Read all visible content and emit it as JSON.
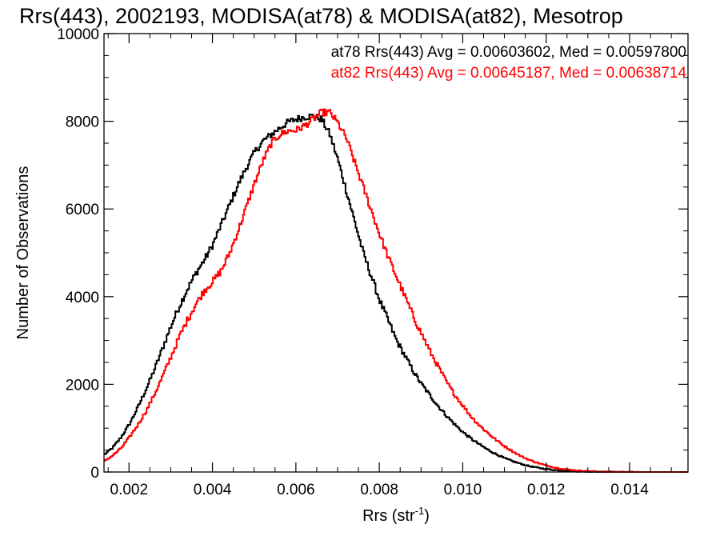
{
  "chart_data": {
    "type": "line",
    "title": "Rrs(443), 2002193, MODISA(at78) & MODISA(at82), Mesotrop",
    "xlabel": "Rrs (str",
    "xlabel_sup": "-1",
    "xlabel_close": ")",
    "ylabel": "Number of Observations",
    "xlim": [
      0.0014,
      0.0154
    ],
    "ylim": [
      0,
      10000
    ],
    "x_ticks": [
      0.002,
      0.004,
      0.006,
      0.008,
      0.01,
      0.012,
      0.014
    ],
    "x_tick_labels": [
      "0.002",
      "0.004",
      "0.006",
      "0.008",
      "0.010",
      "0.012",
      "0.014"
    ],
    "y_ticks": [
      0,
      2000,
      4000,
      6000,
      8000,
      10000
    ],
    "y_tick_labels": [
      "0",
      "2000",
      "4000",
      "6000",
      "8000",
      "10000"
    ],
    "grid": false,
    "step": true,
    "legend_placement": "top-right",
    "series": [
      {
        "name": "at78",
        "color": "#000000",
        "legend": "at78 Rrs(443) Avg = 0.00603602, Med = 0.00597800",
        "points": [
          [
            0.0014,
            400
          ],
          [
            0.0016,
            560
          ],
          [
            0.0018,
            800
          ],
          [
            0.002,
            1100
          ],
          [
            0.0022,
            1480
          ],
          [
            0.0024,
            1900
          ],
          [
            0.0026,
            2350
          ],
          [
            0.0028,
            2850
          ],
          [
            0.003,
            3350
          ],
          [
            0.0032,
            3800
          ],
          [
            0.0034,
            4200
          ],
          [
            0.0036,
            4550
          ],
          [
            0.0038,
            4850
          ],
          [
            0.004,
            5200
          ],
          [
            0.0042,
            5650
          ],
          [
            0.0044,
            6100
          ],
          [
            0.0046,
            6550
          ],
          [
            0.0048,
            6950
          ],
          [
            0.005,
            7300
          ],
          [
            0.0052,
            7550
          ],
          [
            0.0054,
            7700
          ],
          [
            0.0056,
            7850
          ],
          [
            0.0058,
            7980
          ],
          [
            0.006,
            8050
          ],
          [
            0.0062,
            8100
          ],
          [
            0.0064,
            8120
          ],
          [
            0.0066,
            8050
          ],
          [
            0.0068,
            7700
          ],
          [
            0.007,
            7100
          ],
          [
            0.0072,
            6400
          ],
          [
            0.0074,
            5700
          ],
          [
            0.0076,
            5000
          ],
          [
            0.0078,
            4450
          ],
          [
            0.008,
            3900
          ],
          [
            0.0082,
            3450
          ],
          [
            0.0084,
            3000
          ],
          [
            0.0086,
            2650
          ],
          [
            0.0088,
            2300
          ],
          [
            0.009,
            2000
          ],
          [
            0.0092,
            1750
          ],
          [
            0.0094,
            1500
          ],
          [
            0.0096,
            1280
          ],
          [
            0.0098,
            1080
          ],
          [
            0.01,
            900
          ],
          [
            0.0102,
            750
          ],
          [
            0.0104,
            620
          ],
          [
            0.0106,
            500
          ],
          [
            0.0108,
            400
          ],
          [
            0.011,
            310
          ],
          [
            0.0112,
            240
          ],
          [
            0.0114,
            180
          ],
          [
            0.0116,
            130
          ],
          [
            0.0118,
            95
          ],
          [
            0.012,
            65
          ],
          [
            0.0122,
            45
          ],
          [
            0.0124,
            30
          ],
          [
            0.0126,
            20
          ],
          [
            0.0128,
            12
          ],
          [
            0.013,
            8
          ],
          [
            0.0132,
            5
          ],
          [
            0.0134,
            3
          ],
          [
            0.0136,
            2
          ],
          [
            0.0138,
            1
          ],
          [
            0.014,
            0
          ],
          [
            0.0154,
            0
          ]
        ]
      },
      {
        "name": "at82",
        "color": "#ff0000",
        "legend": "at82 Rrs(443) Avg = 0.00645187, Med = 0.00638714",
        "points": [
          [
            0.0014,
            250
          ],
          [
            0.0016,
            380
          ],
          [
            0.0018,
            550
          ],
          [
            0.002,
            800
          ],
          [
            0.0022,
            1080
          ],
          [
            0.0024,
            1400
          ],
          [
            0.0026,
            1780
          ],
          [
            0.0028,
            2200
          ],
          [
            0.003,
            2650
          ],
          [
            0.0032,
            3100
          ],
          [
            0.0034,
            3500
          ],
          [
            0.0036,
            3850
          ],
          [
            0.0038,
            4150
          ],
          [
            0.004,
            4350
          ],
          [
            0.0042,
            4600
          ],
          [
            0.0044,
            5000
          ],
          [
            0.0046,
            5500
          ],
          [
            0.0048,
            6050
          ],
          [
            0.005,
            6600
          ],
          [
            0.0052,
            7100
          ],
          [
            0.0054,
            7500
          ],
          [
            0.0056,
            7700
          ],
          [
            0.0058,
            7780
          ],
          [
            0.006,
            7800
          ],
          [
            0.0062,
            7900
          ],
          [
            0.0064,
            8050
          ],
          [
            0.0066,
            8200
          ],
          [
            0.0068,
            8200
          ],
          [
            0.007,
            7950
          ],
          [
            0.0072,
            7600
          ],
          [
            0.0074,
            7050
          ],
          [
            0.0076,
            6500
          ],
          [
            0.0078,
            5950
          ],
          [
            0.008,
            5400
          ],
          [
            0.0082,
            4900
          ],
          [
            0.0084,
            4450
          ],
          [
            0.0086,
            4000
          ],
          [
            0.0088,
            3550
          ],
          [
            0.009,
            3150
          ],
          [
            0.0092,
            2750
          ],
          [
            0.0094,
            2400
          ],
          [
            0.0096,
            2050
          ],
          [
            0.0098,
            1750
          ],
          [
            0.01,
            1500
          ],
          [
            0.0102,
            1250
          ],
          [
            0.0104,
            1050
          ],
          [
            0.0106,
            880
          ],
          [
            0.0108,
            720
          ],
          [
            0.011,
            580
          ],
          [
            0.0112,
            460
          ],
          [
            0.0114,
            350
          ],
          [
            0.0116,
            270
          ],
          [
            0.0118,
            200
          ],
          [
            0.012,
            145
          ],
          [
            0.0122,
            100
          ],
          [
            0.0124,
            70
          ],
          [
            0.0126,
            45
          ],
          [
            0.0128,
            30
          ],
          [
            0.013,
            20
          ],
          [
            0.0132,
            12
          ],
          [
            0.0134,
            7
          ],
          [
            0.0136,
            4
          ],
          [
            0.0138,
            2
          ],
          [
            0.014,
            1
          ],
          [
            0.0142,
            0
          ],
          [
            0.0154,
            0
          ]
        ]
      }
    ]
  }
}
